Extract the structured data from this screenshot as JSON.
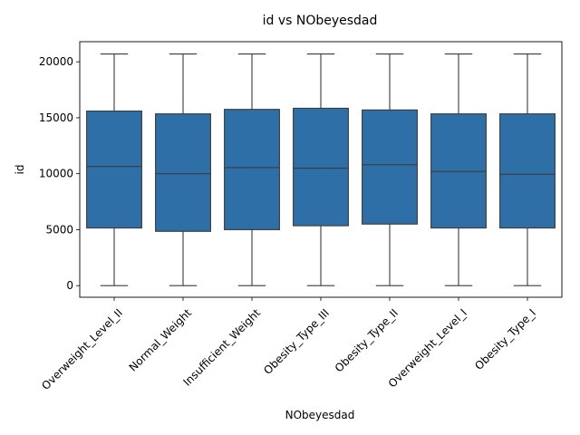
{
  "chart_data": {
    "type": "box",
    "title": "id vs NObeyesdad",
    "xlabel": "NObeyesdad",
    "ylabel": "id",
    "ylim": [
      -1040,
      21800
    ],
    "yticks": [
      0,
      5000,
      10000,
      15000,
      20000
    ],
    "yticklabels": [
      "0",
      "5000",
      "10000",
      "15000",
      "20000"
    ],
    "grid": false,
    "box_color": "#2f6fa7",
    "line_color": "#3b3b3b",
    "categories": [
      "Overweight_Level_II",
      "Normal_Weight",
      "Insufficient_Weight",
      "Obesity_Type_III",
      "Obesity_Type_II",
      "Overweight_Level_I",
      "Obesity_Type_I"
    ],
    "boxes": [
      {
        "min": 0,
        "q1": 5150,
        "median": 10650,
        "q3": 15600,
        "max": 20700
      },
      {
        "min": 0,
        "q1": 4850,
        "median": 10000,
        "q3": 15350,
        "max": 20700
      },
      {
        "min": 0,
        "q1": 5000,
        "median": 10550,
        "q3": 15750,
        "max": 20700
      },
      {
        "min": 0,
        "q1": 5350,
        "median": 10500,
        "q3": 15850,
        "max": 20700
      },
      {
        "min": 0,
        "q1": 5500,
        "median": 10800,
        "q3": 15700,
        "max": 20700
      },
      {
        "min": 0,
        "q1": 5150,
        "median": 10200,
        "q3": 15350,
        "max": 20700
      },
      {
        "min": 0,
        "q1": 5150,
        "median": 9950,
        "q3": 15350,
        "max": 20700
      }
    ]
  }
}
